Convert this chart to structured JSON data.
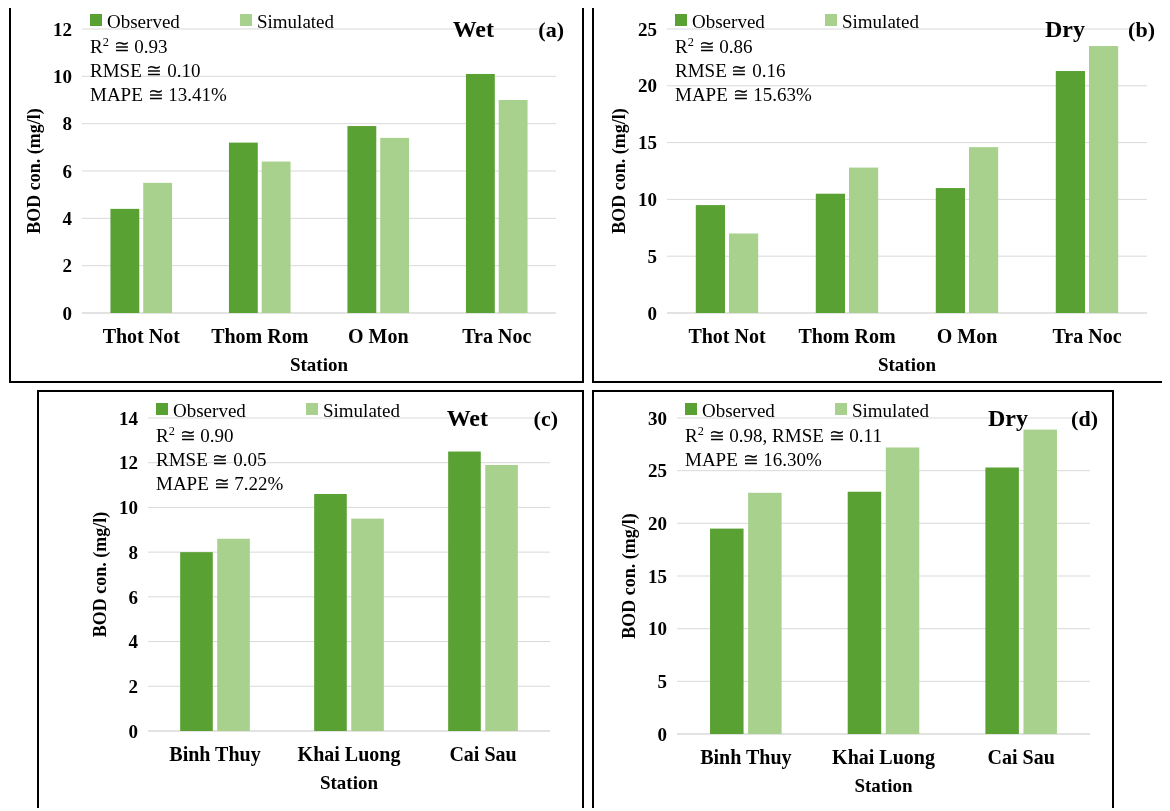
{
  "chart_data": [
    {
      "type": "bar",
      "title": "Wet",
      "subtitle": "(a)",
      "xlabel": "Station",
      "ylabel": "BOD con. (mg/l)",
      "categories": [
        "Thot Not",
        "Thom Rom",
        "O Mon",
        "Tra Noc"
      ],
      "series": [
        {
          "name": "Observed",
          "color": "#5aa133",
          "values": [
            4.4,
            7.2,
            7.9,
            10.1
          ]
        },
        {
          "name": "Simulated",
          "color": "#a9d18e",
          "values": [
            5.5,
            6.4,
            7.4,
            9.0
          ]
        }
      ],
      "ylim": [
        0,
        12
      ],
      "yticks": [
        0,
        2,
        4,
        6,
        8,
        10,
        12
      ],
      "grid": "y",
      "legend": "top left",
      "annotations": [
        "R$^{2}$ ≅ 0.93",
        "RMSE ≅ 0.10",
        "MAPE ≅ 13.41%"
      ]
    },
    {
      "type": "bar",
      "title": "Dry",
      "subtitle": "(b)",
      "xlabel": "Station",
      "ylabel": "BOD con. (mg/l)",
      "categories": [
        "Thot Not",
        "Thom Rom",
        "O Mon",
        "Tra Noc"
      ],
      "series": [
        {
          "name": "Observed",
          "color": "#5aa133",
          "values": [
            9.5,
            10.5,
            11.0,
            21.3
          ]
        },
        {
          "name": "Simulated",
          "color": "#a9d18e",
          "values": [
            7.0,
            12.8,
            14.6,
            23.5
          ]
        }
      ],
      "ylim": [
        0,
        25
      ],
      "yticks": [
        0,
        5,
        10,
        15,
        20,
        25
      ],
      "grid": "y",
      "legend": "top left",
      "annotations": [
        "R$^{2}$ ≅ 0.86",
        "RMSE ≅ 0.16",
        "MAPE ≅ 15.63%"
      ]
    },
    {
      "type": "bar",
      "title": "Wet",
      "subtitle": "(c)",
      "xlabel": "Station",
      "ylabel": "BOD con. (mg/l)",
      "categories": [
        "Binh Thuy",
        "Khai Luong",
        "Cai Sau"
      ],
      "series": [
        {
          "name": "Observed",
          "color": "#5aa133",
          "values": [
            8.0,
            10.6,
            12.5
          ]
        },
        {
          "name": "Simulated",
          "color": "#a9d18e",
          "values": [
            8.6,
            9.5,
            11.9
          ]
        }
      ],
      "ylim": [
        0,
        14
      ],
      "yticks": [
        0,
        2,
        4,
        6,
        8,
        10,
        12,
        14
      ],
      "grid": "y",
      "legend": "top left",
      "annotations": [
        "R$^{2}$ ≅ 0.90",
        "RMSE ≅ 0.05",
        "MAPE ≅ 7.22%"
      ]
    },
    {
      "type": "bar",
      "title": "Dry",
      "subtitle": "(d)",
      "xlabel": "Station",
      "ylabel": "BOD con. (mg/l)",
      "categories": [
        "Binh Thuy",
        "Khai Luong",
        "Cai Sau"
      ],
      "series": [
        {
          "name": "Observed",
          "color": "#5aa133",
          "values": [
            19.5,
            23.0,
            25.3
          ]
        },
        {
          "name": "Simulated",
          "color": "#a9d18e",
          "values": [
            22.9,
            27.2,
            28.9
          ]
        }
      ],
      "ylim": [
        0,
        30
      ],
      "yticks": [
        0,
        5,
        10,
        15,
        20,
        25,
        30
      ],
      "grid": "y",
      "legend": "top left",
      "annotations": [
        "R$^{2}$ ≅ 0.98, RMSE ≅ 0.11",
        "MAPE ≅ 16.30%"
      ]
    }
  ]
}
